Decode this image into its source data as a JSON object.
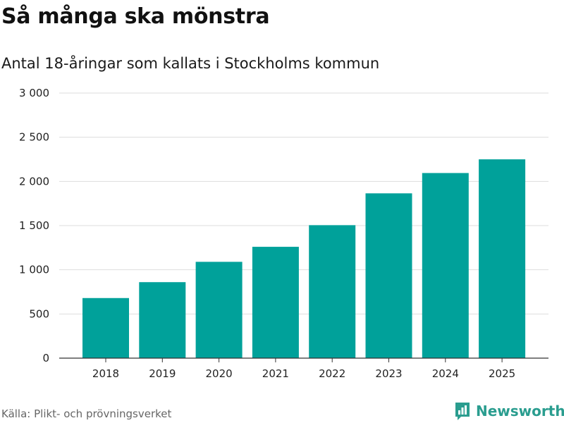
{
  "header": {
    "title": "Så många ska mönstra",
    "subtitle": "Antal 18-åringar som kallats i Stockholms kommun"
  },
  "footer": {
    "source": "Källa: Plikt- och prövningsverket",
    "brand": "Newsworthy",
    "brand_icon": "newsworthy-logo-icon"
  },
  "colors": {
    "bar": "#00a19a",
    "grid": "#dddddd",
    "axis": "#333333",
    "brand": "#2a9d8f"
  },
  "chart_data": {
    "type": "bar",
    "title": "Så många ska mönstra",
    "subtitle": "Antal 18-åringar som kallats i Stockholms kommun",
    "xlabel": "",
    "ylabel": "",
    "categories": [
      "2018",
      "2019",
      "2020",
      "2021",
      "2022",
      "2023",
      "2024",
      "2025"
    ],
    "values": [
      680,
      860,
      1090,
      1260,
      1505,
      1865,
      2095,
      2250
    ],
    "ylim": [
      0,
      3000
    ],
    "yticks": [
      0,
      500,
      1000,
      1500,
      2000,
      2500,
      3000
    ],
    "ytick_labels": [
      "0",
      "500",
      "1 000",
      "1 500",
      "2 000",
      "2 500",
      "3 000"
    ],
    "grid": true,
    "legend": "none"
  }
}
